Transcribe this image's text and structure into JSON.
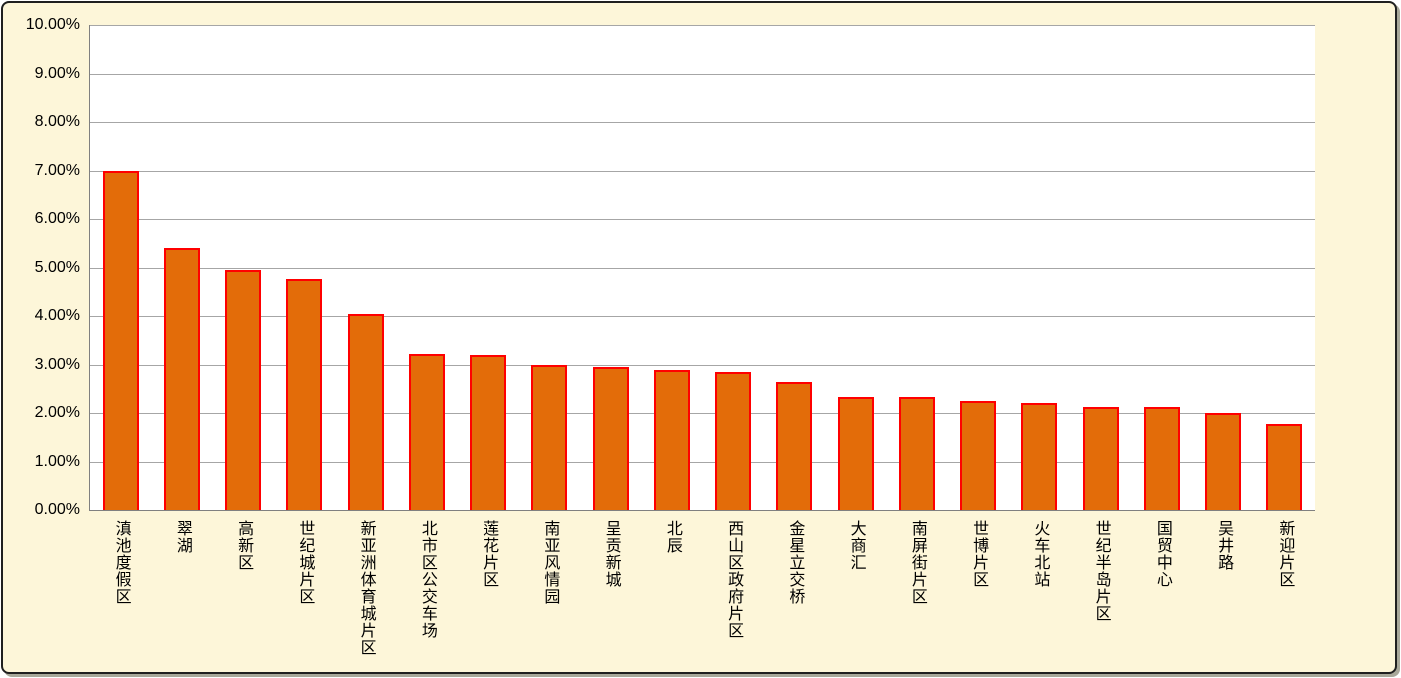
{
  "chart_data": {
    "type": "bar",
    "title": "",
    "xlabel": "",
    "ylabel": "",
    "categories": [
      "滇池度假区",
      "翠湖",
      "高新区",
      "世纪城片区",
      "新亚洲体育城片区",
      "北市区公交车场",
      "莲花片区",
      "南亚风情园",
      "呈贡新城",
      "北辰",
      "西山区政府片区",
      "金星立交桥",
      "大商汇",
      "南屏街片区",
      "世博片区",
      "火车北站",
      "世纪半岛片区",
      "国贸中心",
      "吴井路",
      "新迎片区"
    ],
    "values": [
      7.0,
      5.4,
      4.95,
      4.76,
      4.05,
      3.22,
      3.2,
      2.98,
      2.95,
      2.88,
      2.84,
      2.64,
      2.33,
      2.32,
      2.24,
      2.21,
      2.12,
      2.12,
      2.0,
      1.78
    ],
    "value_unit": "percent",
    "ylim": [
      0,
      10
    ],
    "y_tick_step": 1,
    "y_tick_labels": [
      "0.00%",
      "1.00%",
      "2.00%",
      "3.00%",
      "4.00%",
      "5.00%",
      "6.00%",
      "7.00%",
      "8.00%",
      "9.00%",
      "10.00%"
    ],
    "grid": true,
    "legend": "none",
    "colors": {
      "bar_fill": "#E36C09",
      "bar_border": "#FF0000",
      "chart_background": "#FDF6D9",
      "plot_background": "#FFFFFF",
      "gridline": "#A6A6A6",
      "axis_line": "#808080",
      "tick_text": "#000000",
      "frame_border": "#1F1F1F",
      "frame_shadow": "#A8A89A"
    }
  }
}
